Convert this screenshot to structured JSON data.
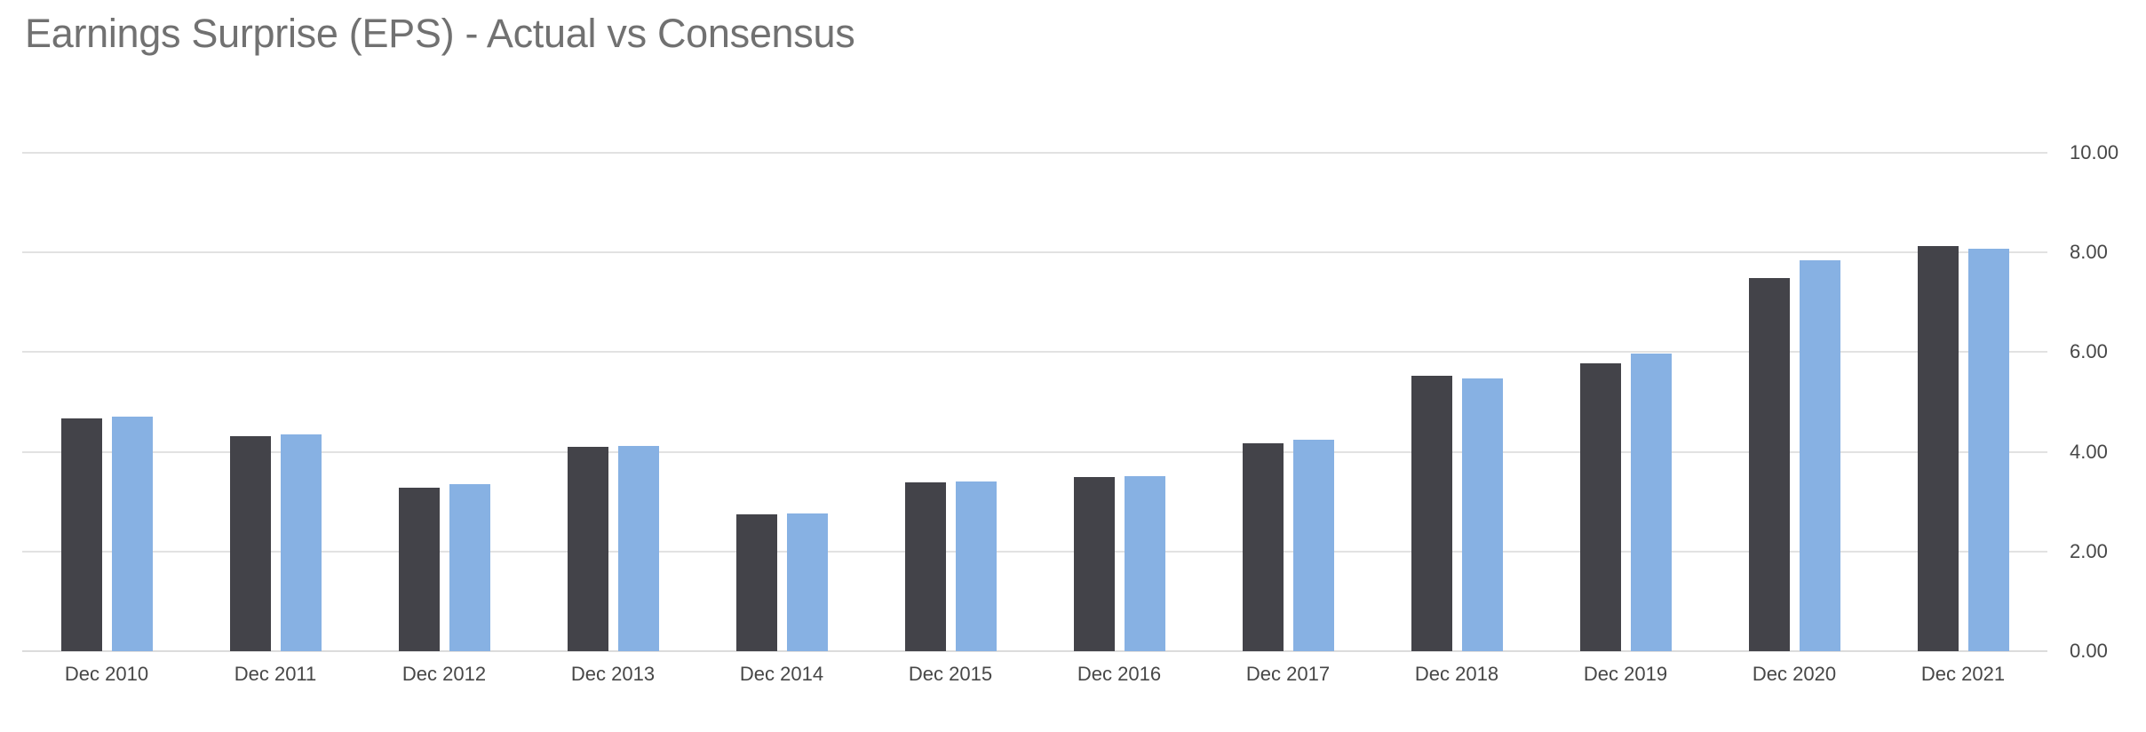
{
  "chart_data": {
    "type": "bar",
    "title": "Earnings Surprise (EPS) - Actual vs Consensus",
    "categories": [
      "Dec 2010",
      "Dec 2011",
      "Dec 2012",
      "Dec 2013",
      "Dec 2014",
      "Dec 2015",
      "Dec 2016",
      "Dec 2017",
      "Dec 2018",
      "Dec 2019",
      "Dec 2020",
      "Dec 2021"
    ],
    "series": [
      {
        "name": "Actual",
        "color": "#434349",
        "values": [
          4.67,
          4.31,
          3.28,
          4.1,
          2.74,
          3.38,
          3.49,
          4.17,
          5.52,
          5.77,
          7.48,
          8.12
        ]
      },
      {
        "name": "Consensus",
        "color": "#87b1e3",
        "values": [
          4.7,
          4.35,
          3.35,
          4.12,
          2.76,
          3.41,
          3.51,
          4.24,
          5.47,
          5.98,
          7.85,
          8.08
        ]
      }
    ],
    "xlabel": "",
    "ylabel": "",
    "ylim": [
      0,
      10
    ],
    "yticks": [
      {
        "value": 10,
        "label": "10.00"
      },
      {
        "value": 8,
        "label": "8.00"
      },
      {
        "value": 6,
        "label": "6.00"
      },
      {
        "value": 4,
        "label": "4.00"
      },
      {
        "value": 2,
        "label": "2.00"
      },
      {
        "value": 0,
        "label": "0.00"
      }
    ],
    "grid": "horizontal",
    "legend_position": "none",
    "y_axis_side": "right"
  },
  "style": {
    "background": "#ffffff",
    "title_color": "#717171",
    "axis_text_color": "#474747",
    "gridline_color": "#e2e2e2",
    "baseline_color": "#dcdcdc"
  }
}
